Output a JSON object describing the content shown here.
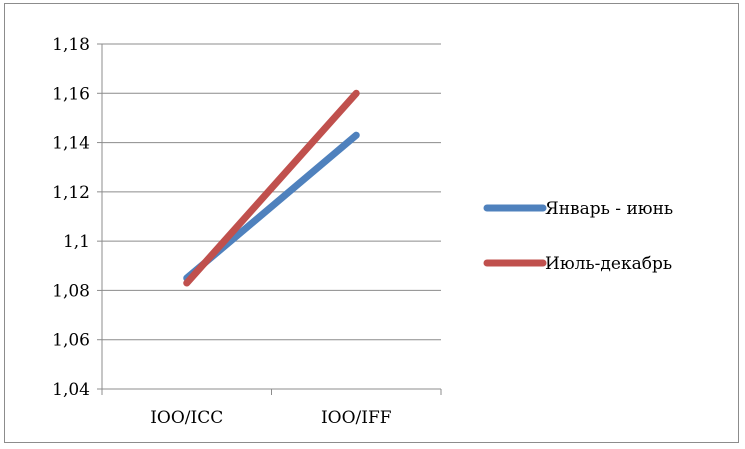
{
  "chart_data": {
    "type": "line",
    "categories": [
      "IOO/ICC",
      "IOO/IFF"
    ],
    "series": [
      {
        "name": "Январь - июнь",
        "values": [
          1.085,
          1.143
        ],
        "color": "#4f81bd"
      },
      {
        "name": "Июль-декабрь",
        "values": [
          1.083,
          1.16
        ],
        "color": "#c0504d"
      }
    ],
    "ylim": [
      1.04,
      1.18
    ],
    "yticks": [
      1.04,
      1.06,
      1.08,
      1.1,
      1.12,
      1.14,
      1.16,
      1.18
    ],
    "ytick_labels": [
      "1,04",
      "1,06",
      "1,08",
      "1,1",
      "1,12",
      "1,14",
      "1,16",
      "1,18"
    ],
    "grid": true,
    "legend_position": "right"
  }
}
